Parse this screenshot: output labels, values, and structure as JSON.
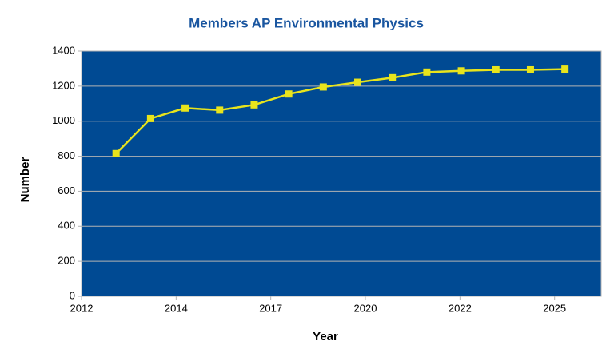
{
  "chart_data": {
    "type": "line",
    "title": "Members AP Environmental Physics",
    "x_label": "Year",
    "y_label": "Number",
    "x": [
      2013,
      2014,
      2015,
      2016,
      2017,
      2018,
      2019,
      2020,
      2021,
      2022,
      2023,
      2024,
      2025,
      2026
    ],
    "series": [
      {
        "name": "Members",
        "color": "#e8e41c",
        "values": [
          815,
          1015,
          1075,
          1063,
          1093,
          1155,
          1195,
          1222,
          1248,
          1280,
          1287,
          1293,
          1293,
          1297
        ]
      }
    ],
    "xlim": [
      2012,
      2027.05
    ],
    "xticks": [
      2012,
      {
        "value": 2014.74,
        "label": "2014"
      },
      {
        "value": 2017.48,
        "label": "2017"
      },
      {
        "value": 2020.22,
        "label": "2020"
      },
      {
        "value": 2022.96,
        "label": "2022"
      },
      {
        "value": 2025.7,
        "label": "2025"
      }
    ],
    "ylim": [
      0,
      1400
    ],
    "yticks": [
      0,
      200,
      400,
      600,
      800,
      1000,
      1200,
      1400
    ],
    "grid": true,
    "plot_background": "#004a93"
  }
}
